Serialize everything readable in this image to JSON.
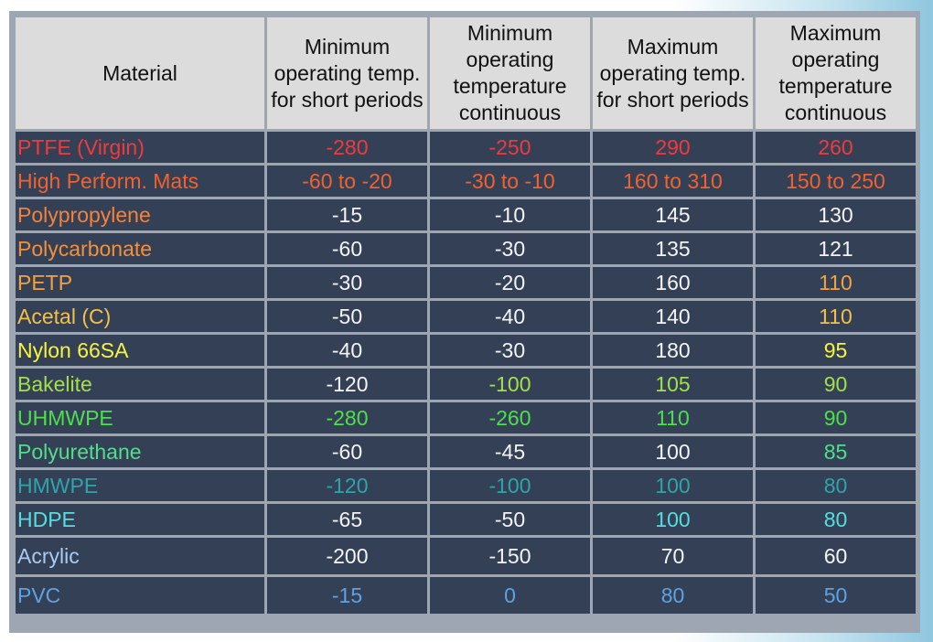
{
  "colors": {
    "header_bg": "#dcdcdc",
    "cell_bg": "#344056",
    "grid": "#9ea7b1"
  },
  "headers": [
    "Material",
    "Minimum operating temp. for short periods",
    "Minimum operating temperature continuous",
    "Maximum operating temp. for short periods",
    "Maximum operating temperature continuous"
  ],
  "rows": [
    {
      "material": "PTFE (Virgin)",
      "min_short": "-280",
      "min_cont": "-250",
      "max_short": "290",
      "max_cont": "260",
      "colors": [
        "#ef3b3b",
        "#ef3b3b",
        "#ef3b3b",
        "#ef3b3b",
        "#ef3b3b"
      ]
    },
    {
      "material": "High Perform. Mats",
      "min_short": "-60 to -20",
      "min_cont": "-30 to -10",
      "max_short": "160 to 310",
      "max_cont": "150 to 250",
      "colors": [
        "#f2622e",
        "#f2622e",
        "#f2622e",
        "#f2622e",
        "#f2622e"
      ]
    },
    {
      "material": "Polypropylene",
      "min_short": "-15",
      "min_cont": "-10",
      "max_short": "145",
      "max_cont": "130",
      "colors": [
        "#f4823a",
        "#f4f4f4",
        "#f4f4f4",
        "#f4f4f4",
        "#f4f4f4"
      ]
    },
    {
      "material": "Polycarbonate",
      "min_short": "-60",
      "min_cont": "-30",
      "max_short": "135",
      "max_cont": "121",
      "colors": [
        "#f4903a",
        "#f4f4f4",
        "#f4f4f4",
        "#f4f4f4",
        "#f4f4f4"
      ]
    },
    {
      "material": "PETP",
      "min_short": "-30",
      "min_cont": "-20",
      "max_short": "160",
      "max_cont": "110",
      "colors": [
        "#f4a23e",
        "#f4f4f4",
        "#f4f4f4",
        "#f4f4f4",
        "#f4a23e"
      ]
    },
    {
      "material": "Acetal (C)",
      "min_short": "-50",
      "min_cont": "-40",
      "max_short": "140",
      "max_cont": "110",
      "colors": [
        "#f5c044",
        "#f4f4f4",
        "#f4f4f4",
        "#f4f4f4",
        "#f5c044"
      ]
    },
    {
      "material": "Nylon 66SA",
      "min_short": "-40",
      "min_cont": "-30",
      "max_short": "180",
      "max_cont": "95",
      "colors": [
        "#f8f43a",
        "#f4f4f4",
        "#f4f4f4",
        "#f4f4f4",
        "#f8f43a"
      ]
    },
    {
      "material": "Bakelite",
      "min_short": "-120",
      "min_cont": "-100",
      "max_short": "105",
      "max_cont": "90",
      "colors": [
        "#a2e04a",
        "#f4f4f4",
        "#a2e04a",
        "#a2e04a",
        "#a2e04a"
      ]
    },
    {
      "material": "UHMWPE",
      "min_short": "-280",
      "min_cont": "-260",
      "max_short": "110",
      "max_cont": "90",
      "colors": [
        "#4ce04a",
        "#4ce04a",
        "#4ce04a",
        "#4ce04a",
        "#4ce04a"
      ]
    },
    {
      "material": "Polyurethane",
      "min_short": "-60",
      "min_cont": "-45",
      "max_short": "100",
      "max_cont": "85",
      "colors": [
        "#52de8a",
        "#f4f4f4",
        "#f4f4f4",
        "#f4f4f4",
        "#52de8a"
      ]
    },
    {
      "material": "HMWPE",
      "min_short": "-120",
      "min_cont": "-100",
      "max_short": "100",
      "max_cont": "80",
      "colors": [
        "#2fa5a9",
        "#2fa5a9",
        "#2fa5a9",
        "#2fa5a9",
        "#2fa5a9"
      ]
    },
    {
      "material": "HDPE",
      "min_short": "-65",
      "min_cont": "-50",
      "max_short": "100",
      "max_cont": "80",
      "colors": [
        "#56dedd",
        "#f4f4f4",
        "#f4f4f4",
        "#56dedd",
        "#56dedd"
      ]
    },
    {
      "material": "Acrylic",
      "min_short": "-200",
      "min_cont": "-150",
      "max_short": "70",
      "max_cont": "60",
      "colors": [
        "#a9cbf2",
        "#f4f4f4",
        "#f4f4f4",
        "#f4f4f4",
        "#f4f4f4"
      ]
    },
    {
      "material": "PVC",
      "min_short": "-15",
      "min_cont": "0",
      "max_short": "80",
      "max_cont": "50",
      "colors": [
        "#5da2e3",
        "#5da2e3",
        "#5da2e3",
        "#5da2e3",
        "#5da2e3"
      ]
    }
  ]
}
